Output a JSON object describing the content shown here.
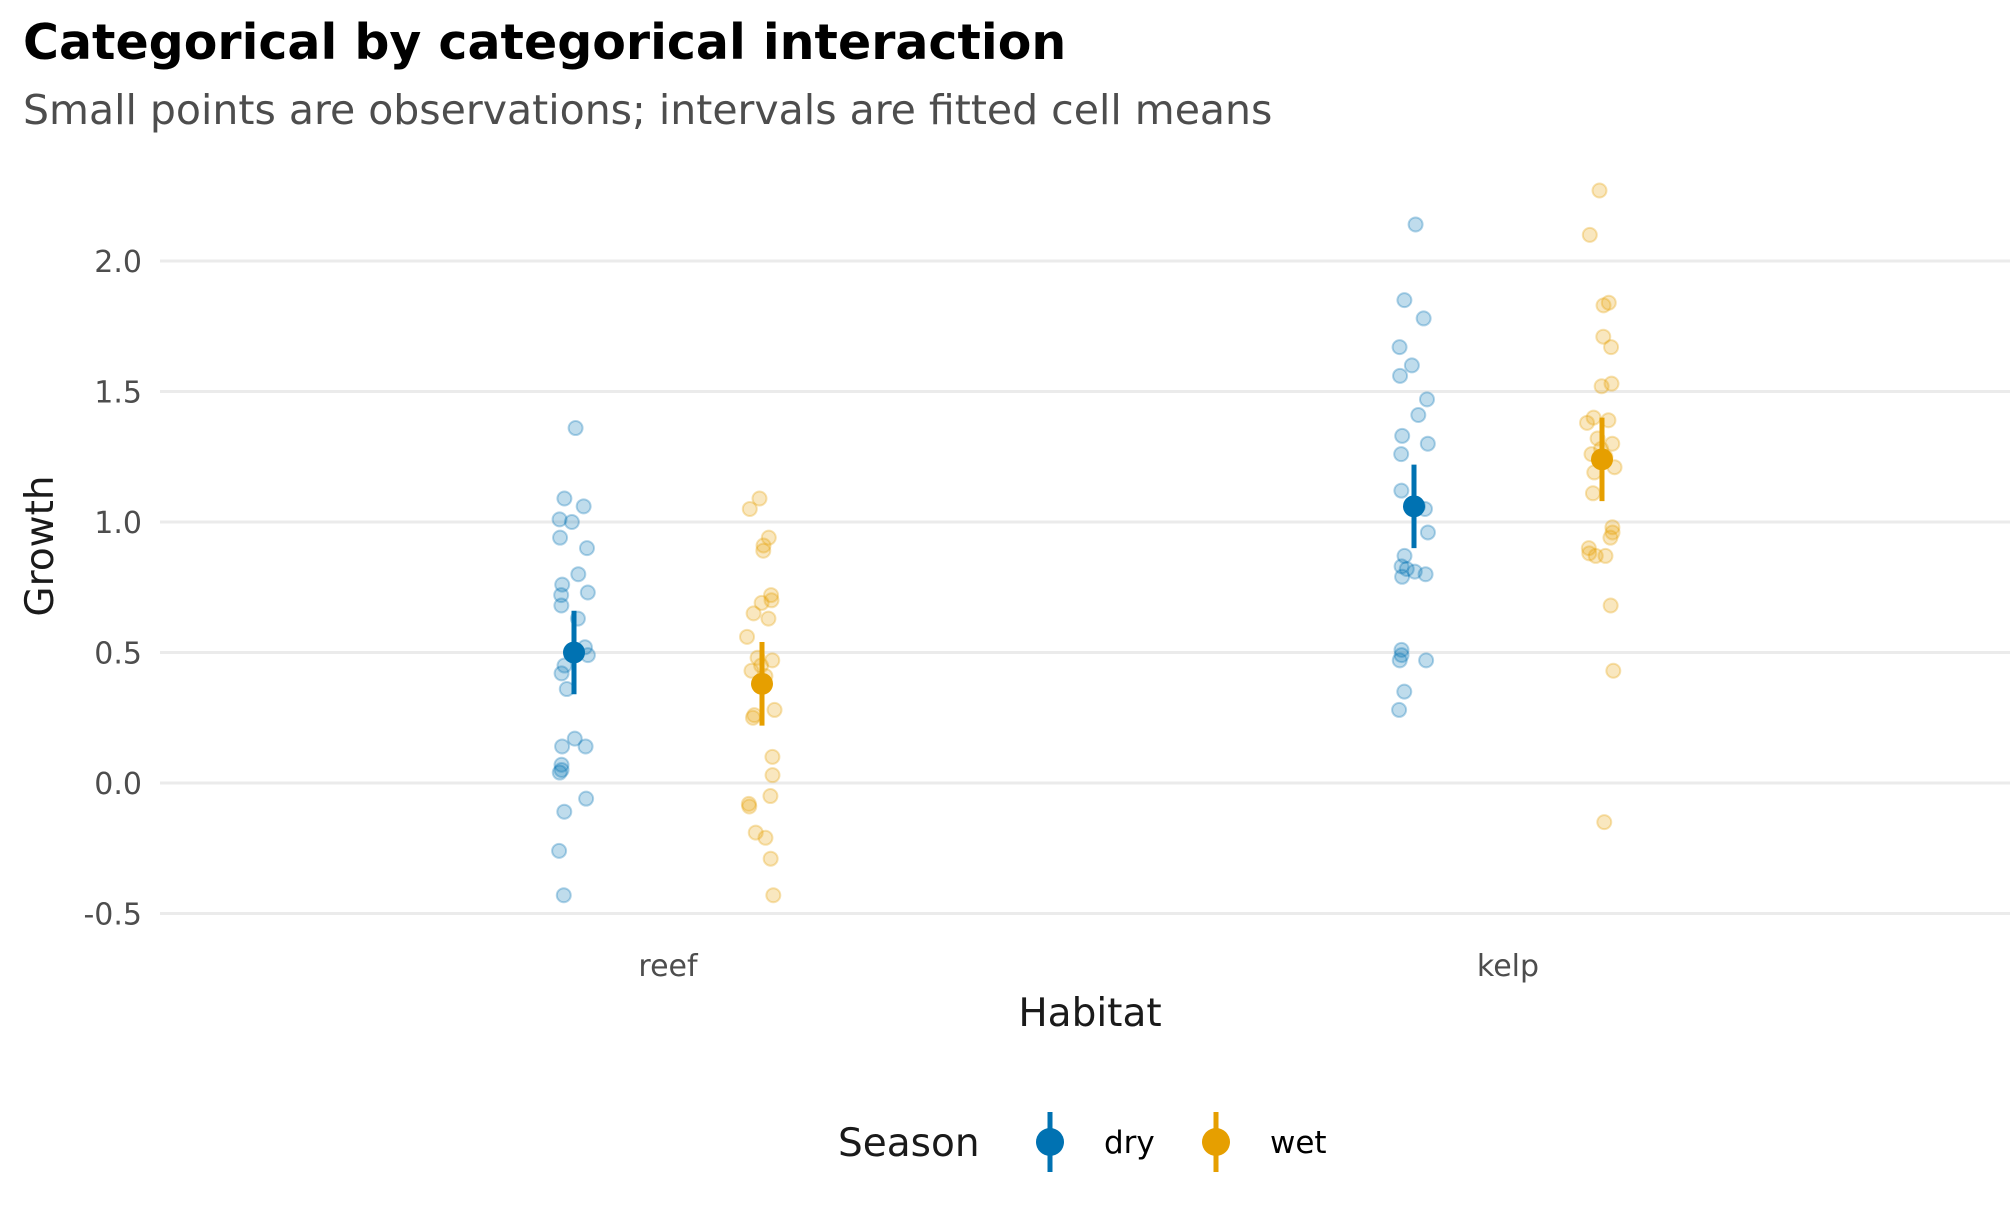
{
  "title": "Categorical by categorical interaction",
  "subtitle": "Small points are observations; intervals are fitted cell means",
  "chart_data": {
    "type": "scatter",
    "title": "Categorical by categorical interaction",
    "subtitle": "Small points are observations; intervals are fitted cell means",
    "xlabel": "Habitat",
    "ylabel": "Growth",
    "categories": [
      "reef",
      "kelp"
    ],
    "ylim": [
      -0.55,
      2.3
    ],
    "yticks": [
      -0.5,
      0.0,
      0.5,
      1.0,
      1.5,
      2.0
    ],
    "ytick_labels": [
      "-0.5",
      "0.0",
      "0.5",
      "1.0",
      "1.5",
      "2.0"
    ],
    "grid": "horizontal major",
    "legend": {
      "title": "Season",
      "position": "bottom",
      "entries": [
        "dry",
        "wet"
      ]
    },
    "colors": {
      "dry": "#0072B2",
      "wet": "#E69F00"
    },
    "series": [
      {
        "name": "dry",
        "color": "#0072B2",
        "observations": {
          "reef": [
            1.36,
            1.09,
            1.06,
            1.01,
            1.0,
            0.94,
            0.9,
            0.8,
            0.76,
            0.73,
            0.72,
            0.68,
            0.63,
            0.52,
            0.49,
            0.45,
            0.42,
            0.36,
            0.17,
            0.14,
            0.14,
            0.07,
            0.05,
            0.04,
            -0.06,
            -0.11,
            -0.26,
            -0.43
          ],
          "kelp": [
            2.14,
            1.85,
            1.78,
            1.67,
            1.6,
            1.56,
            1.47,
            1.41,
            1.33,
            1.3,
            1.26,
            1.12,
            1.06,
            1.05,
            0.96,
            0.87,
            0.83,
            0.82,
            0.81,
            0.8,
            0.79,
            0.51,
            0.49,
            0.47,
            0.47,
            0.35,
            0.28
          ]
        },
        "fitted": [
          {
            "category": "reef",
            "mean": 0.5,
            "lower": 0.34,
            "upper": 0.66
          },
          {
            "category": "kelp",
            "mean": 1.06,
            "lower": 0.9,
            "upper": 1.22
          }
        ]
      },
      {
        "name": "wet",
        "color": "#E69F00",
        "observations": {
          "reef": [
            1.09,
            1.05,
            0.94,
            0.91,
            0.89,
            0.72,
            0.7,
            0.69,
            0.65,
            0.63,
            0.56,
            0.48,
            0.47,
            0.45,
            0.43,
            0.41,
            0.38,
            0.28,
            0.26,
            0.25,
            0.1,
            0.03,
            -0.05,
            -0.08,
            -0.09,
            -0.19,
            -0.21,
            -0.29,
            -0.43
          ],
          "kelp": [
            2.27,
            2.1,
            1.84,
            1.83,
            1.71,
            1.67,
            1.53,
            1.52,
            1.4,
            1.39,
            1.38,
            1.32,
            1.3,
            1.28,
            1.26,
            1.25,
            1.24,
            1.21,
            1.19,
            1.11,
            0.98,
            0.96,
            0.94,
            0.9,
            0.88,
            0.87,
            0.87,
            0.68,
            0.43,
            -0.15
          ]
        },
        "fitted": [
          {
            "category": "reef",
            "mean": 0.38,
            "lower": 0.22,
            "upper": 0.54
          },
          {
            "category": "kelp",
            "mean": 1.24,
            "lower": 1.08,
            "upper": 1.4
          }
        ]
      }
    ]
  }
}
